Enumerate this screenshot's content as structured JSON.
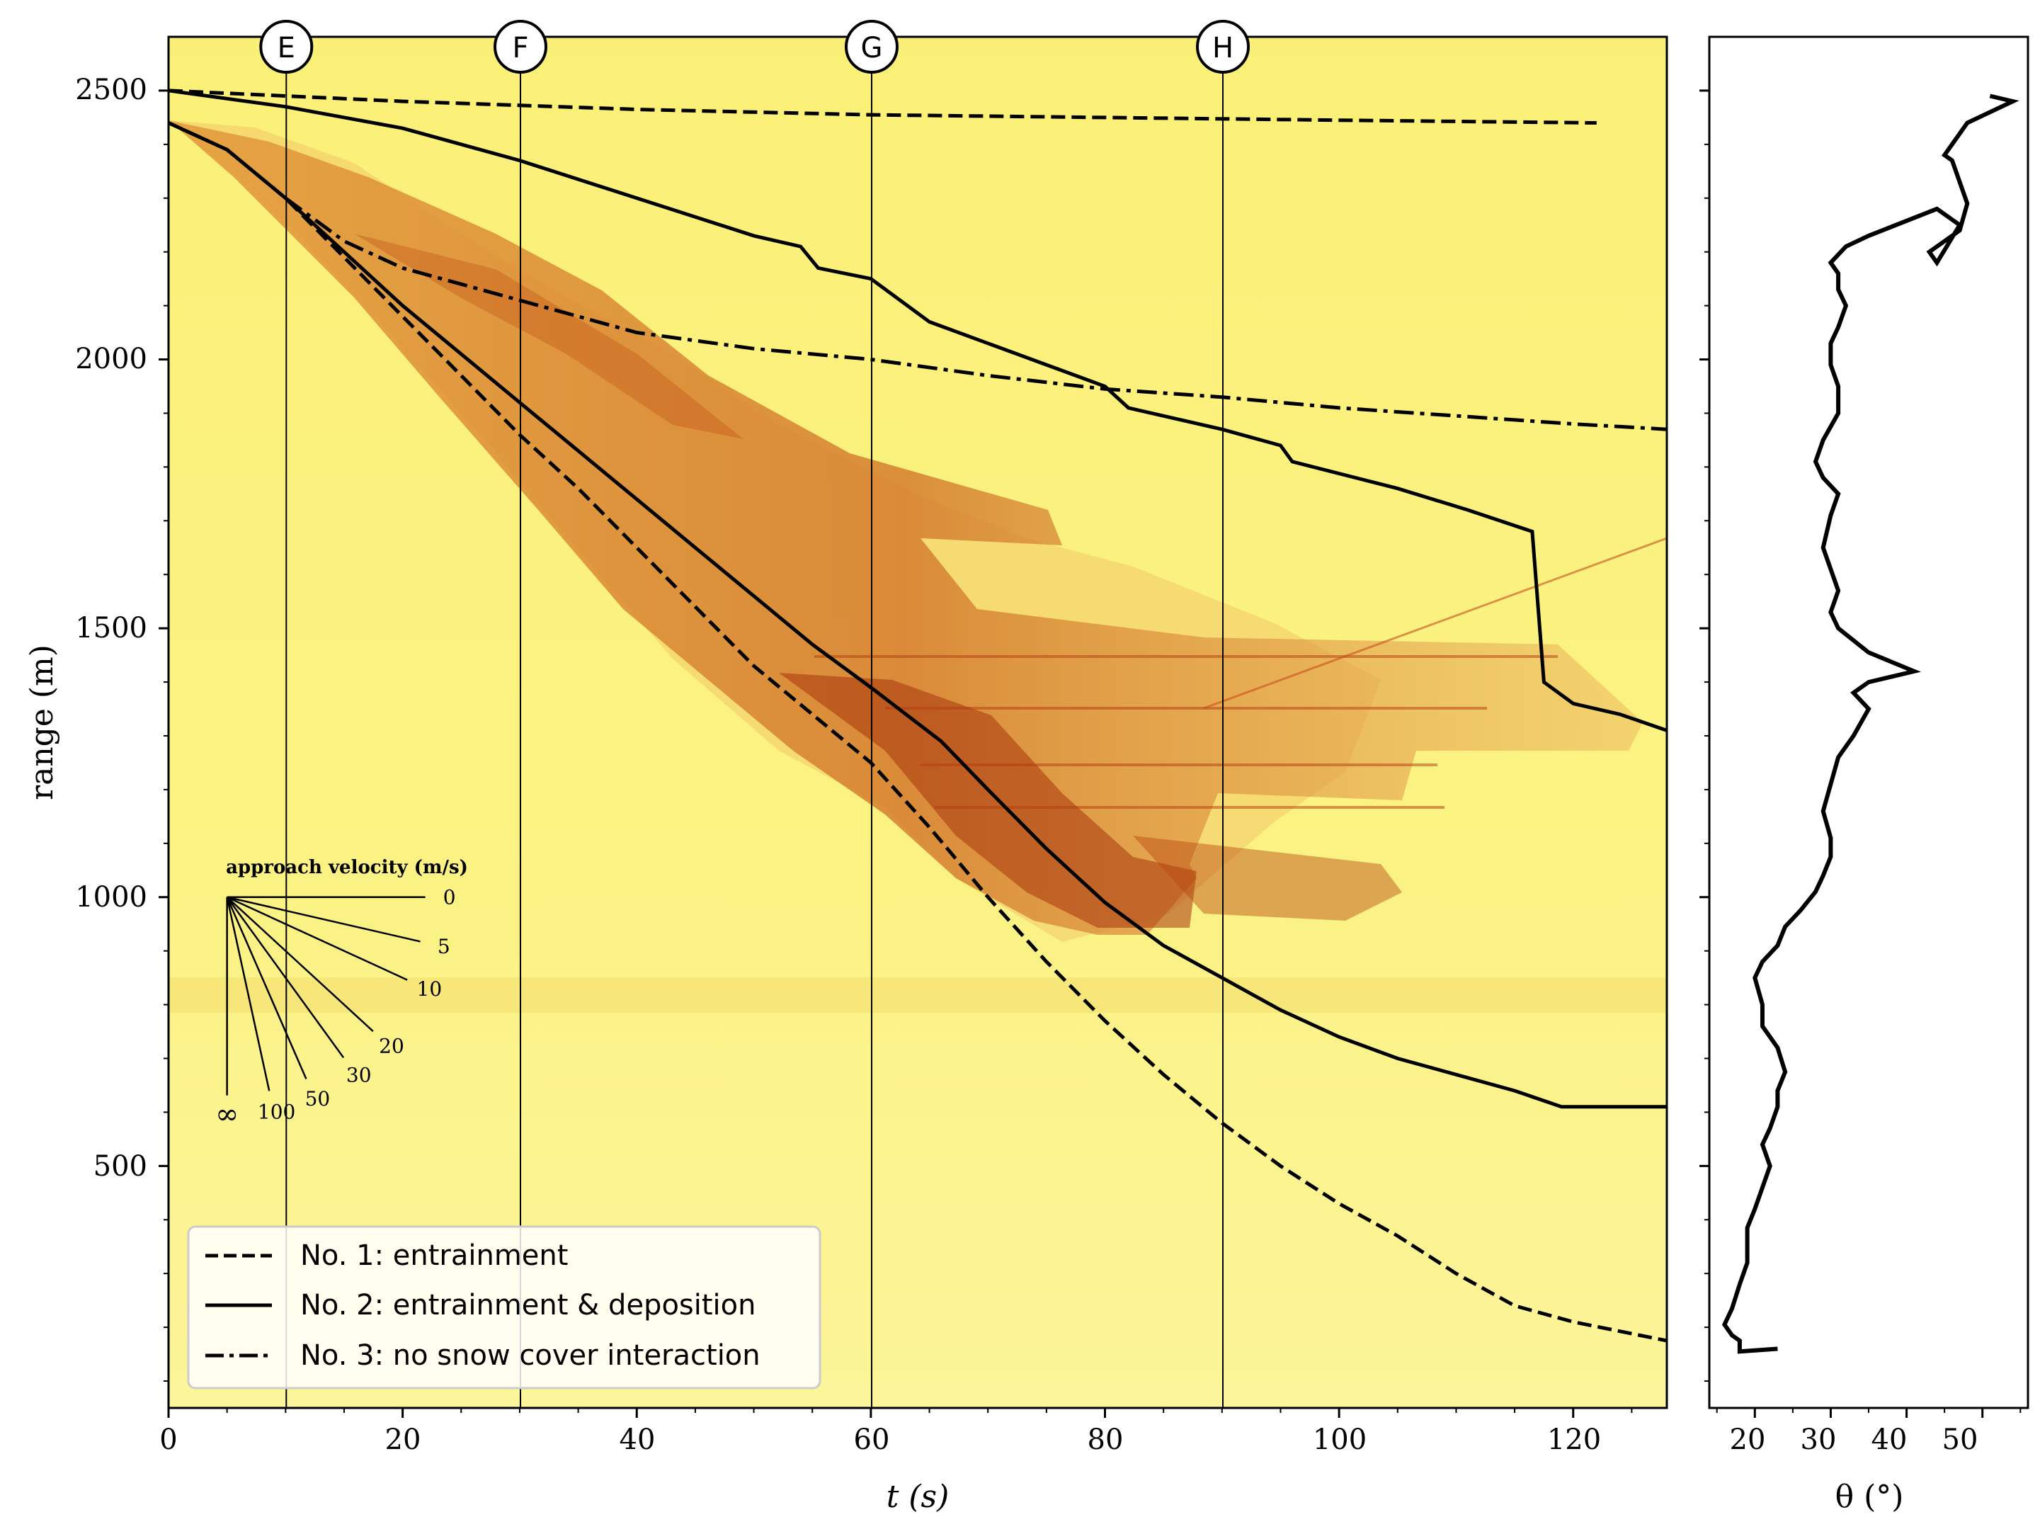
{
  "chart_data": [
    {
      "type": "line",
      "panel": "main",
      "background": "radar range-time intensity image (yellow to dark red)",
      "xlabel": "t (s)",
      "ylabel": "range (m)",
      "xlim": [
        0,
        128
      ],
      "ylim": [
        50,
        2600
      ],
      "xticks": [
        0,
        20,
        40,
        60,
        80,
        100,
        120
      ],
      "xtick_labels": [
        "0",
        "20",
        "40",
        "60",
        "80",
        "100",
        "120"
      ],
      "yticks": [
        500,
        1000,
        1500,
        2000,
        2500
      ],
      "ytick_labels": [
        "500",
        "1000",
        "1500",
        "2000",
        "2500"
      ],
      "grid": false,
      "markers": [
        {
          "label": "E",
          "t": 10
        },
        {
          "label": "F",
          "t": 30
        },
        {
          "label": "G",
          "t": 60
        },
        {
          "label": "H",
          "t": 90
        }
      ],
      "legend": {
        "placement": "lower-left",
        "entries": [
          {
            "label": "No. 1: entrainment",
            "style": "dashed"
          },
          {
            "label": "No. 2: entrainment & deposition",
            "style": "solid"
          },
          {
            "label": "No. 3: no snow cover interaction",
            "style": "dashdot"
          }
        ]
      },
      "velocity_inset": {
        "title": "approach velocity (m/s)",
        "origin": {
          "t": 5,
          "range": 1000
        },
        "velocities": [
          0,
          5,
          10,
          20,
          30,
          50,
          100
        ],
        "velocity_labels": [
          "0",
          "5",
          "10",
          "20",
          "30",
          "50",
          "100"
        ],
        "infinity_label": "∞"
      },
      "series": [
        {
          "name": "No. 1: entrainment (front)",
          "style": "dashed",
          "x": [
            0,
            5,
            10,
            15,
            20,
            25,
            30,
            35,
            40,
            45,
            50,
            55,
            60,
            65,
            70,
            75,
            80,
            85,
            90,
            95,
            100,
            105,
            110,
            115,
            120,
            128
          ],
          "y": [
            2440,
            2390,
            2300,
            2190,
            2080,
            1970,
            1860,
            1760,
            1650,
            1540,
            1430,
            1340,
            1250,
            1130,
            1000,
            880,
            770,
            670,
            580,
            500,
            430,
            370,
            300,
            240,
            210,
            175
          ]
        },
        {
          "name": "No. 1: entrainment (tail)",
          "style": "dashed",
          "x": [
            0,
            20,
            40,
            60,
            80,
            100,
            122
          ],
          "y": [
            2500,
            2480,
            2465,
            2455,
            2450,
            2445,
            2440
          ]
        },
        {
          "name": "No. 2: entrainment & deposition (front)",
          "style": "solid",
          "x": [
            0,
            5,
            10,
            15,
            20,
            25,
            30,
            35,
            40,
            45,
            50,
            55,
            60,
            66,
            70,
            75,
            80,
            85,
            90,
            95,
            100,
            105,
            110,
            115,
            119,
            128
          ],
          "y": [
            2440,
            2390,
            2300,
            2200,
            2100,
            2010,
            1920,
            1830,
            1740,
            1650,
            1560,
            1470,
            1390,
            1290,
            1200,
            1090,
            990,
            910,
            850,
            790,
            740,
            700,
            670,
            640,
            610,
            610
          ]
        },
        {
          "name": "No. 2: entrainment & deposition (tail)",
          "style": "solid",
          "x": [
            0,
            10,
            20,
            30,
            40,
            50,
            54,
            55.5,
            60,
            65,
            70,
            75,
            80,
            82,
            90,
            95,
            96,
            105,
            111,
            116.5,
            117.5,
            120,
            124,
            128
          ],
          "y": [
            2500,
            2470,
            2430,
            2370,
            2300,
            2230,
            2210,
            2170,
            2150,
            2070,
            2030,
            1990,
            1950,
            1910,
            1870,
            1840,
            1810,
            1760,
            1720,
            1680,
            1400,
            1360,
            1340,
            1310
          ]
        },
        {
          "name": "No. 3: no snow cover interaction",
          "style": "dashdot",
          "x": [
            10,
            15,
            20,
            25,
            30,
            40,
            50,
            60,
            70,
            80,
            90,
            100,
            110,
            120,
            128
          ],
          "y": [
            2300,
            2220,
            2170,
            2140,
            2110,
            2050,
            2020,
            2000,
            1970,
            1945,
            1930,
            1910,
            1895,
            1880,
            1870
          ]
        }
      ]
    },
    {
      "type": "line",
      "panel": "slope",
      "xlabel": "θ (°)",
      "xlim": [
        14,
        56
      ],
      "ylim": [
        50,
        2600
      ],
      "xticks": [
        20,
        30,
        40,
        50
      ],
      "xtick_labels": [
        "20",
        "30",
        "40",
        "50"
      ],
      "series": [
        {
          "name": "slope angle",
          "x": [
            23,
            18,
            18,
            17,
            16,
            17,
            18,
            19,
            19,
            19,
            20,
            21,
            22,
            21,
            22,
            23,
            23,
            24,
            23,
            21,
            21,
            20,
            21,
            23,
            24,
            26,
            28,
            29,
            30,
            30,
            29,
            30,
            31,
            33,
            35,
            33,
            35,
            41,
            35,
            31,
            30,
            31,
            30,
            29,
            30,
            31,
            29,
            28,
            29,
            31,
            31,
            30,
            30,
            31,
            32,
            31,
            31,
            30,
            32,
            35,
            44,
            47,
            44,
            43,
            47,
            48,
            47,
            46,
            45,
            48,
            54,
            51
          ],
          "y": [
            160,
            155,
            175,
            185,
            205,
            235,
            280,
            320,
            350,
            385,
            420,
            460,
            500,
            540,
            570,
            610,
            640,
            675,
            720,
            760,
            800,
            850,
            880,
            910,
            945,
            975,
            1010,
            1040,
            1075,
            1110,
            1160,
            1210,
            1260,
            1300,
            1350,
            1380,
            1400,
            1420,
            1455,
            1500,
            1530,
            1570,
            1610,
            1650,
            1710,
            1750,
            1780,
            1810,
            1850,
            1900,
            1950,
            1990,
            2030,
            2060,
            2100,
            2130,
            2160,
            2180,
            2210,
            2230,
            2280,
            2250,
            2180,
            2200,
            2240,
            2290,
            2330,
            2370,
            2380,
            2440,
            2480,
            2490
          ]
        }
      ]
    }
  ]
}
